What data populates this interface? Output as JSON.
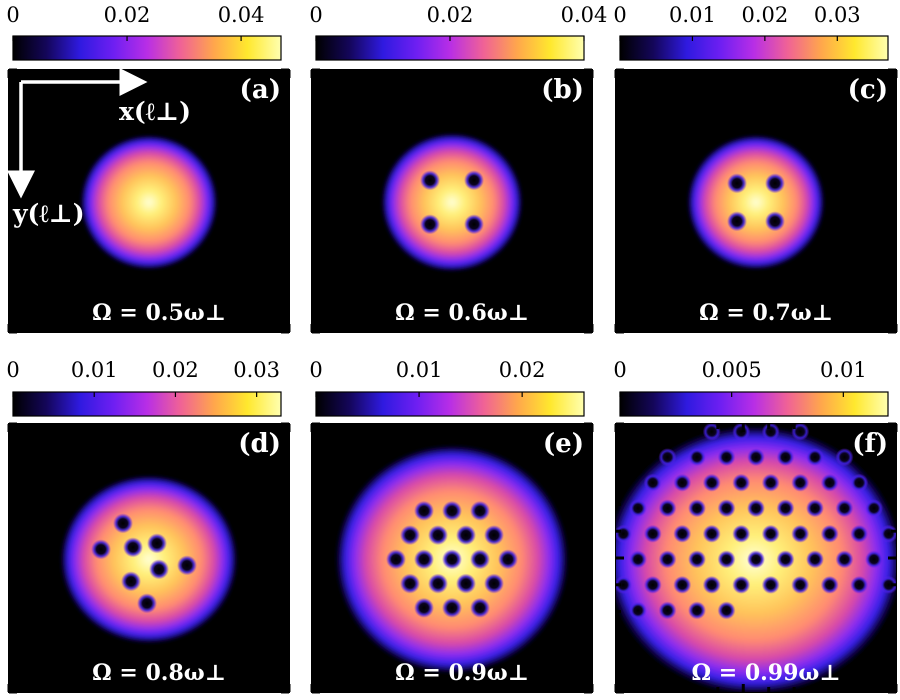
{
  "colormap": [
    "#000000",
    "#14065a",
    "#2f1ae0",
    "#6e1ff2",
    "#b82ee6",
    "#f06296",
    "#ffa64c",
    "#ffe82e",
    "#ffffb0"
  ],
  "axis_labels": {
    "x": "x(ℓ⊥)",
    "y": "y(ℓ⊥)"
  },
  "chart_data": [
    {
      "type": "heatmap",
      "panel": "(a)",
      "omega_label": "Ω = 0.5ω⊥",
      "colorbar": {
        "ticks": [
          0,
          0.02,
          0.04
        ],
        "tick_labels": [
          "0",
          "0.02",
          "0.04"
        ],
        "range": [
          0,
          0.047
        ]
      },
      "vortex_count": 0
    },
    {
      "type": "heatmap",
      "panel": "(b)",
      "omega_label": "Ω = 0.6ω⊥",
      "colorbar": {
        "ticks": [
          0,
          0.02,
          0.04
        ],
        "tick_labels": [
          "0",
          "0.02",
          "0.04"
        ],
        "range": [
          0,
          0.04
        ]
      },
      "vortex_count": 4
    },
    {
      "type": "heatmap",
      "panel": "(c)",
      "omega_label": "Ω = 0.7ω⊥",
      "colorbar": {
        "ticks": [
          0,
          0.01,
          0.02,
          0.03
        ],
        "tick_labels": [
          "0",
          "0.01",
          "0.02",
          "0.03"
        ],
        "range": [
          0,
          0.037
        ]
      },
      "vortex_count": 4
    },
    {
      "type": "heatmap",
      "panel": "(d)",
      "omega_label": "Ω = 0.8ω⊥",
      "colorbar": {
        "ticks": [
          0,
          0.01,
          0.02,
          0.03
        ],
        "tick_labels": [
          "0",
          "0.01",
          "0.02",
          "0.03"
        ],
        "range": [
          0,
          0.033
        ]
      },
      "vortex_count": 8
    },
    {
      "type": "heatmap",
      "panel": "(e)",
      "omega_label": "Ω = 0.9ω⊥",
      "colorbar": {
        "ticks": [
          0,
          0.01,
          0.02
        ],
        "tick_labels": [
          "0",
          "0.01",
          "0.02"
        ],
        "range": [
          0,
          0.026
        ]
      },
      "vortex_count": 19
    },
    {
      "type": "heatmap",
      "panel": "(f)",
      "omega_label": "Ω = 0.99ω⊥",
      "colorbar": {
        "ticks": [
          0,
          0.005,
          0.01
        ],
        "tick_labels": [
          "0",
          "0.005",
          "0.01"
        ],
        "range": [
          0,
          0.012
        ]
      },
      "vortex_count": 61
    }
  ]
}
